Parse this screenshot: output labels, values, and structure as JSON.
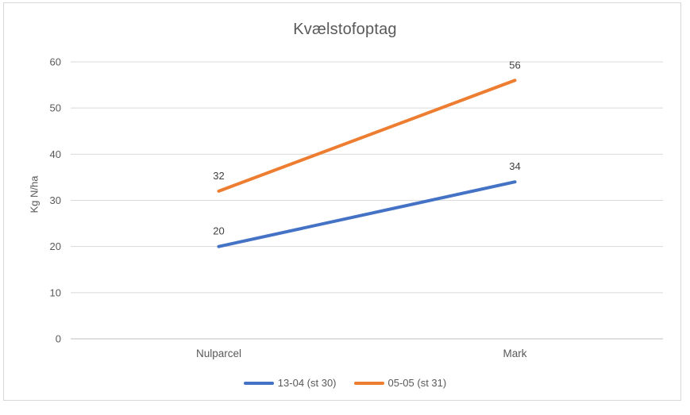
{
  "chart": {
    "title": "Kvælstofoptag",
    "ylabel": "Kg N/ha"
  },
  "chart_data": {
    "type": "line",
    "title": "Kvælstofoptag",
    "xlabel": "",
    "ylabel": "Kg N/ha",
    "categories": [
      "Nulparcel",
      "Mark"
    ],
    "series": [
      {
        "name": "13-04 (st 30)",
        "color": "#4472C4",
        "values": [
          20,
          34
        ]
      },
      {
        "name": "05-05 (st 31)",
        "color": "#ED7D31",
        "values": [
          32,
          56
        ]
      }
    ],
    "ylim": [
      0,
      60
    ],
    "yticks": [
      0,
      10,
      20,
      30,
      40,
      50,
      60
    ],
    "grid": true,
    "legend_position": "bottom",
    "data_labels": true,
    "colors": {
      "gridline": "#D9D9D9",
      "axis_line": "#BFBFBF",
      "tick_text": "#595959",
      "data_label_text": "#404040",
      "title_text": "#595959",
      "border": "#D7D7D7",
      "background": "#FFFFFF"
    }
  }
}
